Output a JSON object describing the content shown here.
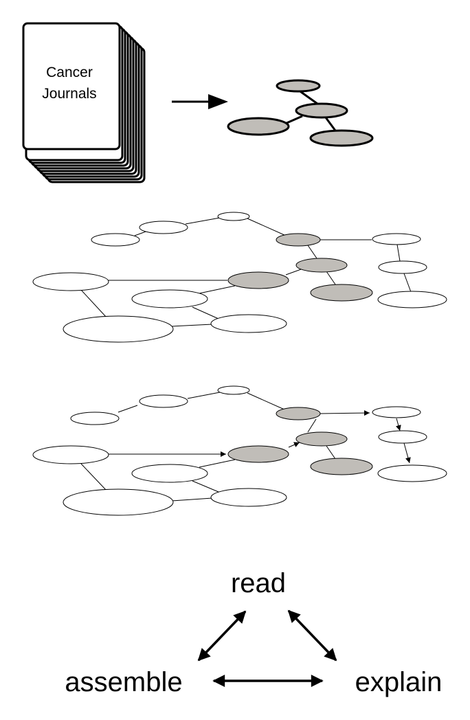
{
  "journal": {
    "line1": "Cancer",
    "line2": "Journals"
  },
  "cycle": {
    "read": "read",
    "assemble": "assemble",
    "explain": "explain"
  },
  "colors": {
    "highlight": "#c0bdb8",
    "outline": "#000000",
    "background": "#ffffff"
  }
}
